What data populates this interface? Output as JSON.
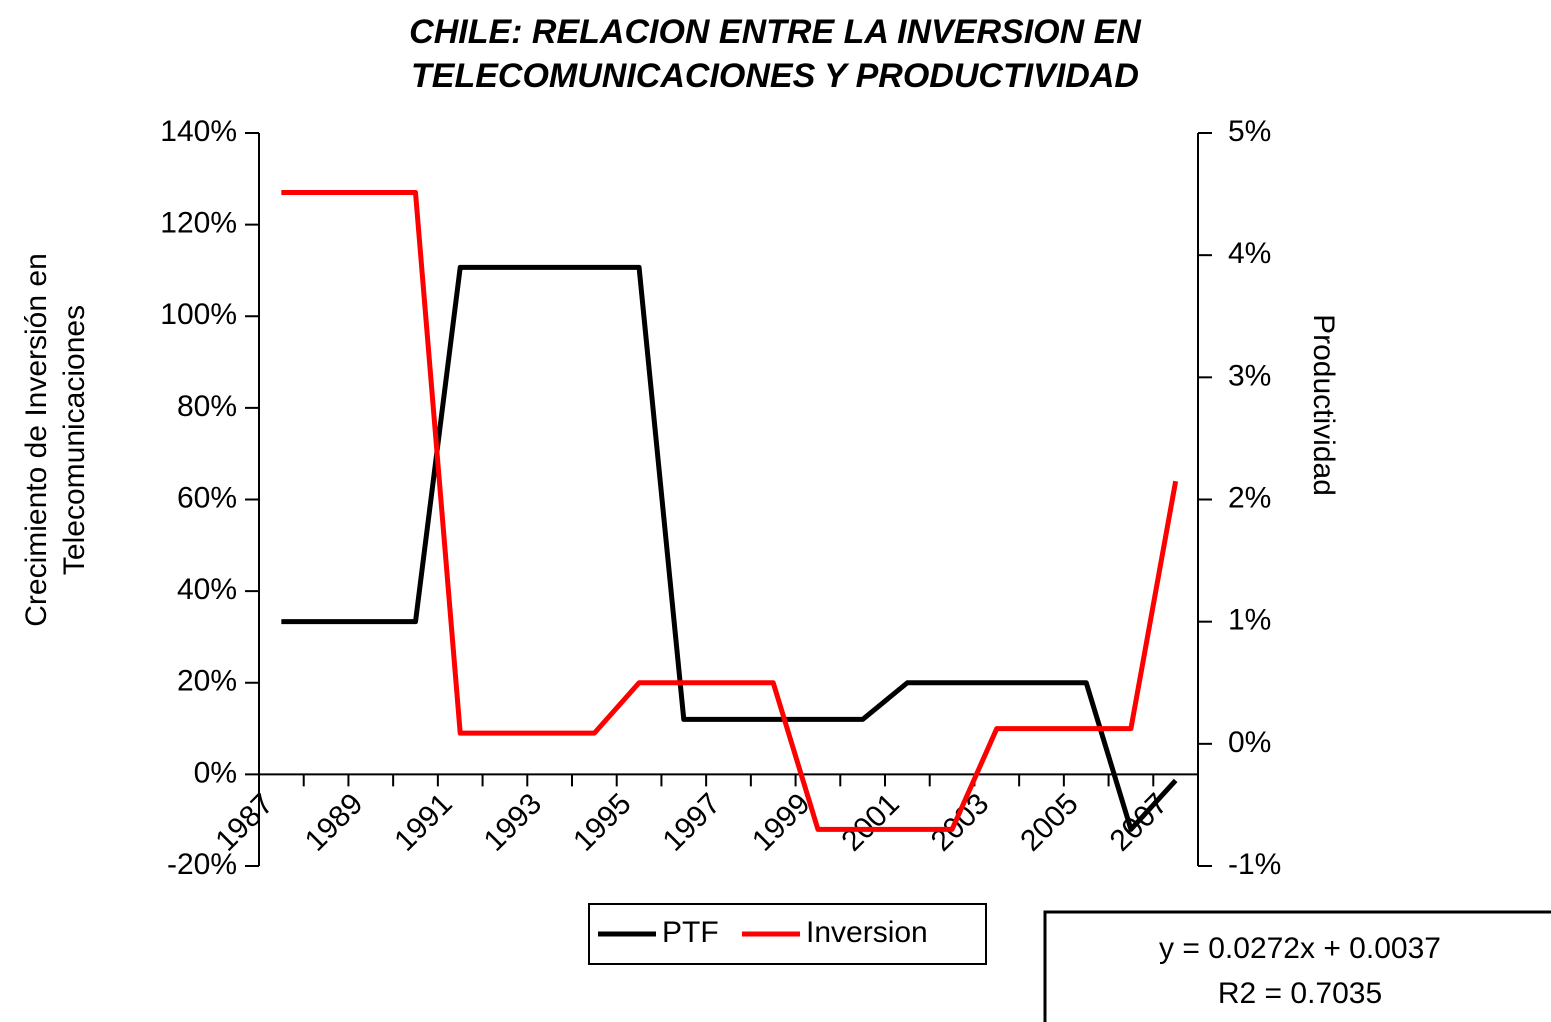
{
  "chart_data": {
    "type": "line",
    "title": [
      "CHILE: RELACION ENTRE LA INVERSION EN",
      "TELECOMUNICACIONES Y PRODUCTIVIDAD"
    ],
    "ylabel": [
      "Crecimiento de Inversión en",
      "Telecomunicaciones"
    ],
    "y2label": "Productividad",
    "categories": [
      "1987",
      null,
      "1989",
      null,
      "1991",
      null,
      "1993",
      null,
      "1995",
      null,
      "1997",
      null,
      "1999",
      null,
      "2001",
      null,
      "2003",
      null,
      "2005",
      null,
      "2007"
    ],
    "series": [
      {
        "name": "PTF",
        "color": "#000000",
        "axis": "y2",
        "values": [
          1.0,
          1.0,
          1.0,
          1.0,
          3.9,
          3.9,
          3.9,
          3.9,
          3.9,
          0.2,
          0.2,
          0.2,
          0.2,
          0.2,
          0.5,
          0.5,
          0.5,
          0.5,
          0.5,
          -0.7,
          -0.3
        ]
      },
      {
        "name": "Inversion",
        "color": "#ff0000",
        "values": [
          127,
          127,
          127,
          127,
          9,
          9,
          9,
          9,
          20,
          20,
          20,
          20,
          -12,
          -12,
          -12,
          -12,
          10,
          10,
          10,
          10,
          64
        ]
      }
    ],
    "ylim": [
      -20,
      140
    ],
    "yticks": [
      {
        "value": -20,
        "label": "-20%"
      },
      {
        "value": 0,
        "label": "0%"
      },
      {
        "value": 20,
        "label": "20%"
      },
      {
        "value": 40,
        "label": "40%"
      },
      {
        "value": 60,
        "label": "60%"
      },
      {
        "value": 80,
        "label": "80%"
      },
      {
        "value": 100,
        "label": "100%"
      },
      {
        "value": 120,
        "label": "120%"
      },
      {
        "value": 140,
        "label": "140%"
      }
    ],
    "y2lim": [
      -1,
      5
    ],
    "y2ticks": [
      {
        "value": -1,
        "label": "-1%"
      },
      {
        "value": 0,
        "label": "0%"
      },
      {
        "value": 1,
        "label": "1%"
      },
      {
        "value": 2,
        "label": "2%"
      },
      {
        "value": 3,
        "label": "3%"
      },
      {
        "value": 4,
        "label": "4%"
      },
      {
        "value": 5,
        "label": "5%"
      }
    ],
    "annotations": [
      "y = 0.0272x + 0.0037",
      "R2 = 0.7035"
    ]
  }
}
